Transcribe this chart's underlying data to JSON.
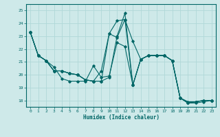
{
  "xlabel": "Humidex (Indice chaleur)",
  "xlim": [
    -0.5,
    23.5
  ],
  "ylim": [
    17.5,
    25.5
  ],
  "yticks": [
    18,
    19,
    20,
    21,
    22,
    23,
    24,
    25
  ],
  "xticks": [
    0,
    1,
    2,
    3,
    4,
    5,
    6,
    7,
    8,
    9,
    10,
    11,
    12,
    13,
    14,
    15,
    16,
    17,
    18,
    19,
    20,
    21,
    22,
    23
  ],
  "bg_color": "#cee9e9",
  "grid_color": "#b0d8d8",
  "line_color": "#006666",
  "lines": [
    [
      23.3,
      21.5,
      21.1,
      20.6,
      19.7,
      19.5,
      19.5,
      19.5,
      20.7,
      19.8,
      19.9,
      22.5,
      22.2,
      19.2,
      21.2,
      21.5,
      21.5,
      21.5,
      21.1,
      18.2,
      17.8,
      17.8,
      17.9,
      18.0
    ],
    [
      23.3,
      21.5,
      21.1,
      20.3,
      20.3,
      20.1,
      20.0,
      19.6,
      19.5,
      19.5,
      19.8,
      23.0,
      24.8,
      19.2,
      21.2,
      21.5,
      21.5,
      21.5,
      21.1,
      18.2,
      17.8,
      17.9,
      18.0,
      18.0
    ],
    [
      23.3,
      21.5,
      21.1,
      20.3,
      20.3,
      20.1,
      20.0,
      19.6,
      19.5,
      20.3,
      23.2,
      24.2,
      24.3,
      19.2,
      21.2,
      21.5,
      21.5,
      21.5,
      21.1,
      18.2,
      17.9,
      17.9,
      18.0,
      18.0
    ],
    [
      23.3,
      21.5,
      21.1,
      20.3,
      20.3,
      20.1,
      20.0,
      19.6,
      19.5,
      19.5,
      23.2,
      22.9,
      24.3,
      22.6,
      21.2,
      21.5,
      21.5,
      21.5,
      21.1,
      18.2,
      17.8,
      17.9,
      18.0,
      18.0
    ]
  ]
}
